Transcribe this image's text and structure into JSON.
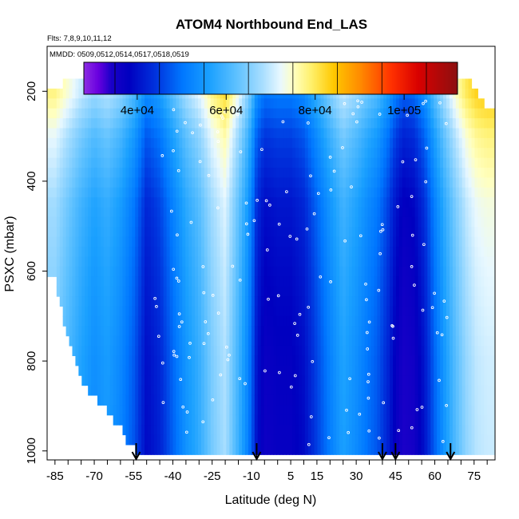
{
  "chart_data": {
    "type": "heatmap",
    "title": "ATOM4 Northbound End_LAS",
    "subtitle_flights": "Flts: 7,8,9,10,11,12",
    "subtitle_dates": "MMDD: 0509,0512,0514,0517,0518,0519",
    "xlabel": "Latitude (deg N)",
    "ylabel": "PSXC (mbar)",
    "xlim": [
      -88,
      83
    ],
    "ylim": [
      1020,
      100
    ],
    "x_ticks": [
      -85,
      -70,
      -55,
      -40,
      -25,
      -10,
      5,
      15,
      30,
      45,
      60,
      75
    ],
    "x_minor_step": 5,
    "y_ticks": [
      200,
      400,
      600,
      800,
      1000
    ],
    "colorbar": {
      "range": [
        28000,
        112000
      ],
      "ticks": [
        40000,
        60000,
        80000,
        100000
      ],
      "tick_labels": [
        "4e+04",
        "6e+04",
        "8e+04",
        "1e+05"
      ],
      "separators": [
        35000,
        45000,
        55000,
        65000,
        75000,
        85000,
        95000,
        105000
      ],
      "stops": [
        [
          28000,
          "#8a2be2"
        ],
        [
          31000,
          "#6a00e0"
        ],
        [
          34000,
          "#1a00c8"
        ],
        [
          38000,
          "#0000c0"
        ],
        [
          44000,
          "#0033dd"
        ],
        [
          50000,
          "#0077ff"
        ],
        [
          56000,
          "#1aa0ff"
        ],
        [
          62000,
          "#5cc0ff"
        ],
        [
          68000,
          "#a8deff"
        ],
        [
          72000,
          "#e8f8ff"
        ],
        [
          75000,
          "#ffffc0"
        ],
        [
          79000,
          "#fff06a"
        ],
        [
          84000,
          "#ffc800"
        ],
        [
          90000,
          "#ff8a00"
        ],
        [
          97000,
          "#ff3000"
        ],
        [
          103000,
          "#d80000"
        ],
        [
          112000,
          "#8a1010"
        ]
      ]
    },
    "arrow_latitudes": [
      -54,
      -8,
      40,
      45,
      66
    ],
    "column_profile": {
      "lats": [
        -85,
        -80,
        -75,
        -70,
        -65,
        -60,
        -55,
        -53,
        -50,
        -45,
        -40,
        -35,
        -30,
        -25,
        -20,
        -15,
        -12,
        -10,
        -8,
        -5,
        0,
        5,
        10,
        15,
        20,
        25,
        30,
        35,
        38,
        42,
        45,
        48,
        52,
        56,
        60,
        64,
        68,
        72,
        76,
        80
      ],
      "values": [
        66000,
        62000,
        58000,
        55000,
        57000,
        54000,
        49000,
        46000,
        41000,
        44000,
        50000,
        56000,
        60000,
        66000,
        70000,
        61000,
        55000,
        50000,
        42000,
        38000,
        39000,
        39000,
        41000,
        47000,
        53000,
        58000,
        55000,
        51000,
        49000,
        44000,
        39000,
        36000,
        37000,
        42000,
        50000,
        57000,
        63000,
        68000,
        71000,
        72000
      ]
    },
    "layer_adjust": [
      {
        "p": 200,
        "d": 12000
      },
      {
        "p": 300,
        "d": 6000
      },
      {
        "p": 450,
        "d": 1500
      },
      {
        "p": 600,
        "d": 0
      },
      {
        "p": 800,
        "d": -1500
      },
      {
        "p": 1000,
        "d": -2000
      }
    ],
    "lowest_level_by_lat": [
      {
        "lat": -85,
        "p": 620
      },
      {
        "lat": -82,
        "p": 700
      },
      {
        "lat": -79,
        "p": 760
      },
      {
        "lat": -76,
        "p": 830
      },
      {
        "lat": -72,
        "p": 870
      },
      {
        "lat": -67,
        "p": 900
      },
      {
        "lat": -61,
        "p": 940
      },
      {
        "lat": -57,
        "p": 980
      },
      {
        "lat": -54,
        "p": 1000
      }
    ],
    "highest_level_by_lat": [
      {
        "lat": -88,
        "p": 200
      },
      {
        "lat": -78,
        "p": 170
      },
      {
        "lat": 72,
        "p": 170
      },
      {
        "lat": 78,
        "p": 225
      },
      {
        "lat": 83,
        "p": 240
      }
    ]
  }
}
